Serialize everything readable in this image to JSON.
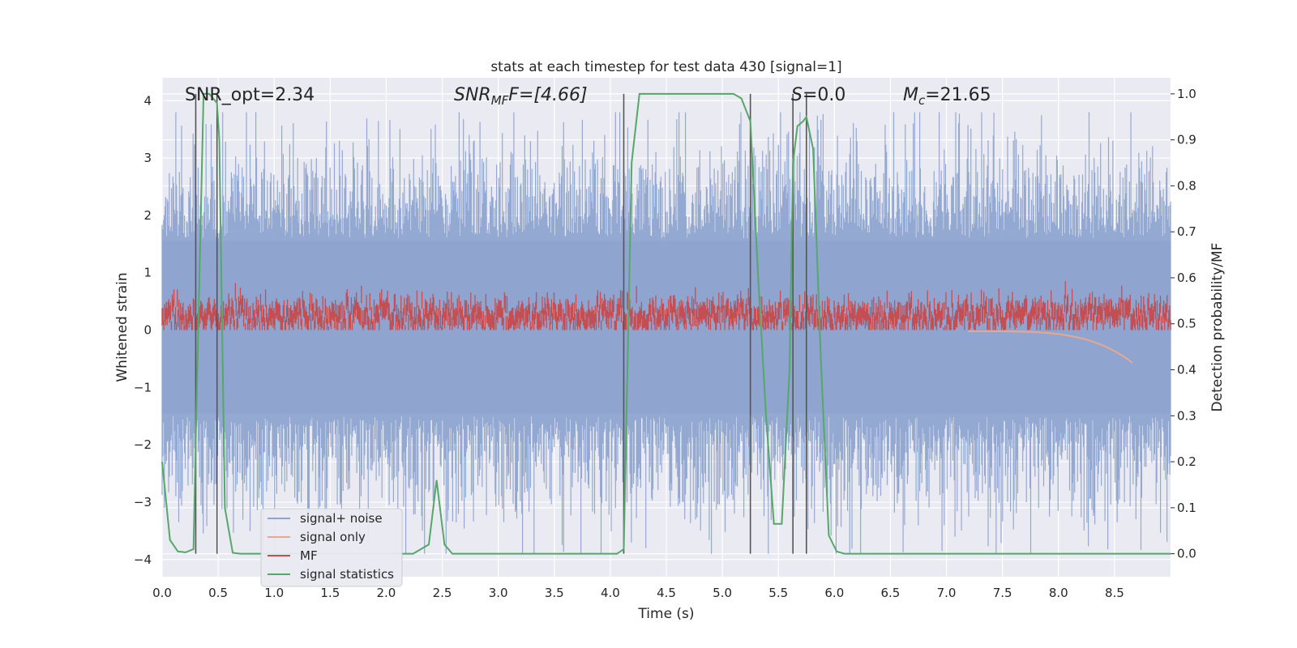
{
  "chart_data": {
    "type": "line",
    "title": "stats at each timestep for test data 430 [signal=1]",
    "xlabel": "Time (s)",
    "ylabel": "Whitened strain",
    "ylabel_right": "Detection probability/MF",
    "xlim": [
      0,
      9
    ],
    "ylim": [
      -4.3,
      4.4
    ],
    "ylim_right": [
      -0.05,
      1.035
    ],
    "x_ticks": [
      "0.0",
      "0.5",
      "1.0",
      "1.5",
      "2.0",
      "2.5",
      "3.0",
      "3.5",
      "4.0",
      "4.5",
      "5.0",
      "5.5",
      "6.0",
      "6.5",
      "7.0",
      "7.5",
      "8.0",
      "8.5"
    ],
    "y_ticks": [
      "4",
      "3",
      "2",
      "1",
      "0",
      "−1",
      "−2",
      "−3",
      "−4"
    ],
    "y_ticks_right": [
      "1.0",
      "0.9",
      "0.8",
      "0.7",
      "0.6",
      "0.5",
      "0.4",
      "0.3",
      "0.2",
      "0.1",
      "0.0"
    ],
    "grid": true,
    "legend_placement": "lower-left",
    "annotations": {
      "snr_opt": "SNR_opt=2.34",
      "snr_mf_sym": "SNR",
      "snr_mf_sub": "MF",
      "snr_mf_val": "F=[4.66]",
      "s_sym": "S",
      "s_val": "=0.0",
      "mc_sym": "M",
      "mc_sub": "c",
      "mc_val": "=21.65"
    },
    "vertical_lines_x": [
      0.3,
      0.49,
      4.12,
      5.25,
      5.63,
      5.75
    ],
    "series": [
      {
        "name": "signal+ noise",
        "color": "#8fa5cf",
        "description_range": [
          -3.9,
          3.8
        ]
      },
      {
        "name": "signal only",
        "color": "#e8a88f"
      },
      {
        "name": "MF",
        "color": "#c44e52"
      },
      {
        "name": "signal statistics",
        "color": "#55a868",
        "x": [
          0.0,
          0.07,
          0.14,
          0.21,
          0.28,
          0.3,
          0.37,
          0.42,
          0.49,
          0.51,
          0.56,
          0.63,
          0.7,
          0.84,
          0.98,
          1.12,
          1.26,
          1.4,
          1.54,
          1.68,
          1.82,
          1.96,
          2.1,
          2.24,
          2.38,
          2.45,
          2.52,
          2.59,
          2.66,
          2.8,
          2.94,
          3.08,
          3.22,
          3.36,
          3.5,
          3.64,
          3.78,
          3.92,
          4.06,
          4.12,
          4.19,
          4.26,
          4.4,
          4.54,
          4.68,
          4.82,
          4.96,
          5.1,
          5.17,
          5.25,
          5.32,
          5.39,
          5.46,
          5.53,
          5.6,
          5.63,
          5.67,
          5.72,
          5.75,
          5.81,
          5.88,
          5.95,
          6.02,
          6.09,
          6.23,
          6.37,
          6.51,
          6.65,
          6.79,
          6.93,
          7.07,
          7.21,
          7.35,
          7.49,
          7.63,
          7.77,
          7.91,
          8.05,
          8.19,
          8.33,
          8.47,
          8.61,
          8.75,
          8.89,
          9.0
        ],
        "values": [
          0.2,
          0.03,
          0.005,
          0.003,
          0.01,
          0.25,
          1.0,
          1.0,
          0.98,
          0.9,
          0.1,
          0.002,
          0.0,
          0.0,
          0.0,
          0.0,
          0.0,
          0.0,
          0.0,
          0.0,
          0.0,
          0.0,
          0.0,
          0.0,
          0.02,
          0.16,
          0.02,
          0.0,
          0.0,
          0.0,
          0.0,
          0.0,
          0.0,
          0.0,
          0.0,
          0.0,
          0.0,
          0.0,
          0.0,
          0.01,
          0.85,
          1.0,
          1.0,
          1.0,
          1.0,
          1.0,
          1.0,
          1.0,
          0.99,
          0.94,
          0.6,
          0.3,
          0.065,
          0.065,
          0.4,
          0.85,
          0.93,
          0.94,
          0.95,
          0.88,
          0.42,
          0.04,
          0.005,
          0.0,
          0.0,
          0.0,
          0.0,
          0.0,
          0.0,
          0.0,
          0.0,
          0.0,
          0.0,
          0.0,
          0.0,
          0.0,
          0.0,
          0.0,
          0.0,
          0.0,
          0.0,
          0.0,
          0.0,
          0.0,
          0.0
        ]
      }
    ]
  }
}
